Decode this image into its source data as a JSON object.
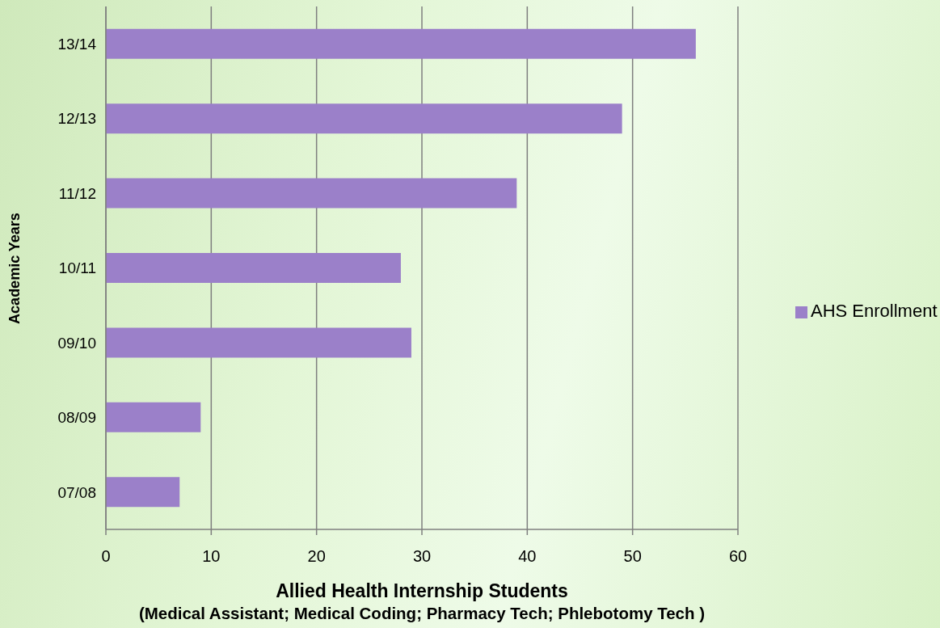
{
  "chart_data": {
    "type": "bar",
    "orientation": "horizontal",
    "ylabel": "Academic Years",
    "xlabel": "Allied Health Internship Students",
    "annotations": [
      "(Medical Assistant; Medical Coding; Pharmacy Tech; Phlebotomy Tech )"
    ],
    "categories": [
      "13/14",
      "12/13",
      "11/12",
      "10/11",
      "09/10",
      "08/09",
      "07/08"
    ],
    "series": [
      {
        "name": "AHS Enrollment",
        "color": "#9b80c9",
        "values": [
          56,
          49,
          39,
          28,
          29,
          9,
          7
        ]
      }
    ],
    "xlim": [
      0,
      60
    ],
    "xticks": [
      0,
      10,
      20,
      30,
      40,
      50,
      60
    ],
    "grid": "x",
    "legend": "right"
  }
}
